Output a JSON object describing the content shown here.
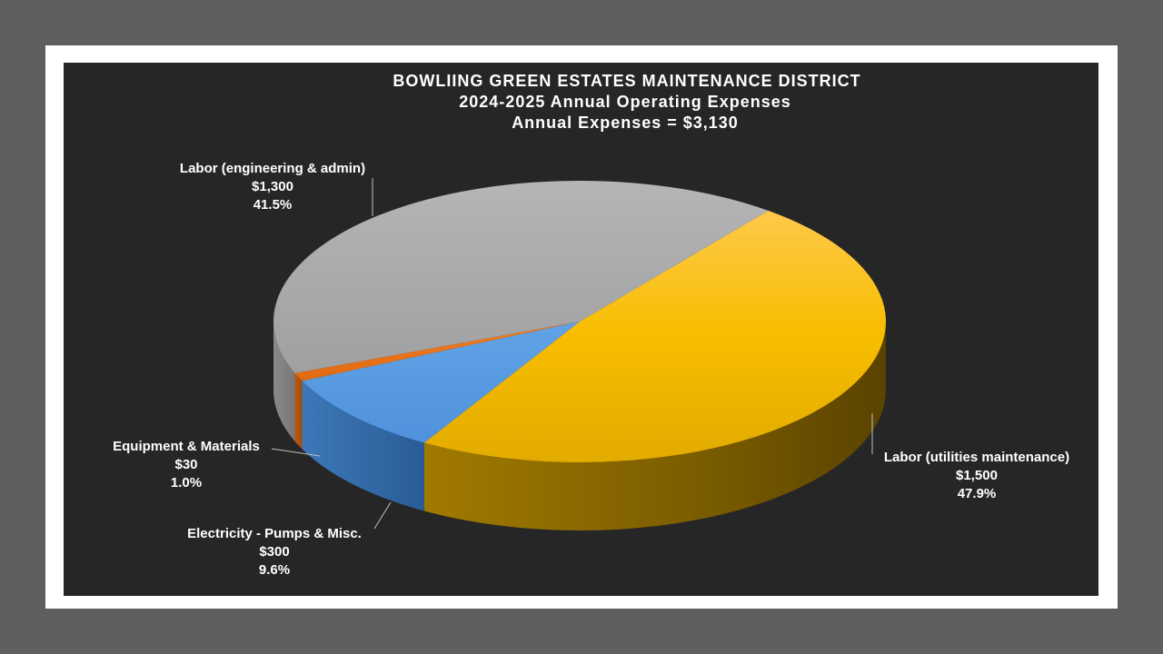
{
  "chart_data": {
    "type": "pie",
    "title": [
      "BOWLIING GREEN ESTATES MAINTENANCE DISTRICT",
      "2024-2025 Annual Operating Expenses",
      "Annual Expenses = $3,130"
    ],
    "slices": [
      {
        "name": "Labor (utilities maintenance)",
        "value": 1500,
        "value_label": "$1,500",
        "percent_label": "47.9%",
        "color": "#f5b800"
      },
      {
        "name": "Electricity - Pumps & Misc.",
        "value": 300,
        "value_label": "$300",
        "percent_label": "9.6%",
        "color": "#4a8fd6"
      },
      {
        "name": "Equipment & Materials",
        "value": 30,
        "value_label": "$30",
        "percent_label": "1.0%",
        "color": "#e87722"
      },
      {
        "name": "Labor (engineering & admin)",
        "value": 1300,
        "value_label": "$1,300",
        "percent_label": "41.5%",
        "color": "#a6a6a6"
      }
    ],
    "total": 3130,
    "style": "3d-pie"
  }
}
